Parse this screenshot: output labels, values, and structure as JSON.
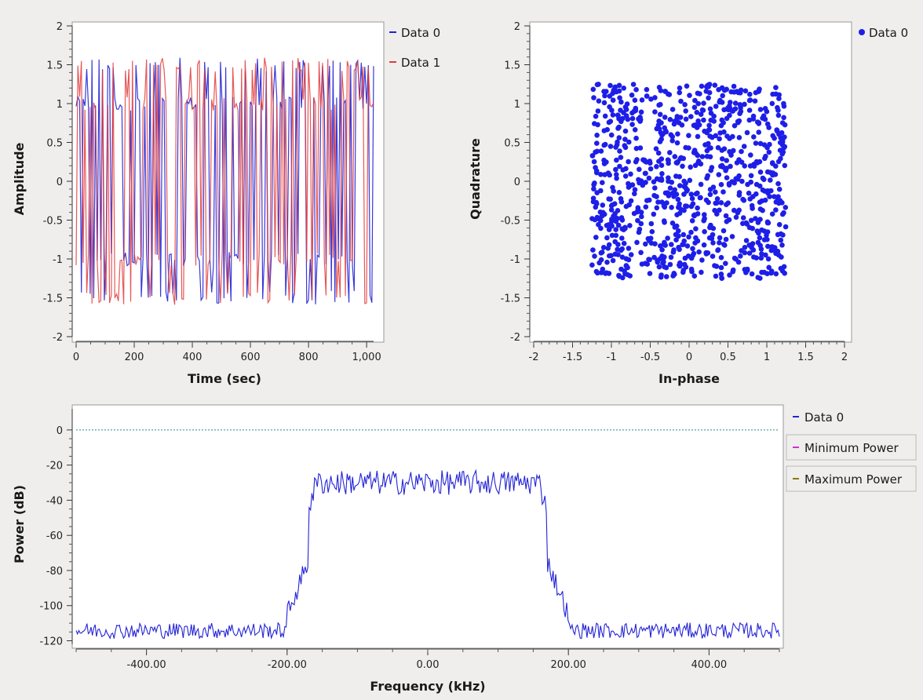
{
  "chart_data": [
    {
      "type": "line",
      "xlabel": "Time (sec)",
      "ylabel": "Amplitude",
      "xlim": [
        0,
        1024
      ],
      "ylim": [
        -2,
        2
      ],
      "xticks": [
        0,
        200,
        400,
        600,
        800,
        1000
      ],
      "xtick_labels": [
        "0",
        "200",
        "400",
        "600",
        "800",
        "1,000"
      ],
      "yticks": [
        -2,
        -1.5,
        -1,
        -0.5,
        0,
        0.5,
        1,
        1.5,
        2
      ],
      "ytick_labels": [
        "-2",
        "-1.5",
        "-1",
        "-0.5",
        "0",
        "0.5",
        "1",
        "1.5",
        "2"
      ],
      "grid": false,
      "legend_position": "right",
      "series": [
        {
          "name": "Data 0",
          "color": "#2323d6",
          "levels": [
            -1.5,
            -1.0,
            1.0,
            1.5
          ],
          "clip_min": 0.5
        },
        {
          "name": "Data 1",
          "color": "#e23a3a",
          "levels": [
            -1.5,
            -1.0,
            1.0,
            1.5
          ],
          "clip_min": 0.5
        }
      ]
    },
    {
      "type": "scatter",
      "xlabel": "In-phase",
      "ylabel": "Quadrature",
      "xlim": [
        -2,
        2
      ],
      "ylim": [
        -2,
        2
      ],
      "xticks": [
        -2,
        -1.5,
        -1,
        -0.5,
        0,
        0.5,
        1,
        1.5,
        2
      ],
      "xtick_labels": [
        "-2",
        "-1.5",
        "-1",
        "-0.5",
        "0",
        "0.5",
        "1",
        "1.5",
        "2"
      ],
      "yticks": [
        -2,
        -1.5,
        -1,
        -0.5,
        0,
        0.5,
        1,
        1.5,
        2
      ],
      "ytick_labels": [
        "-2",
        "-1.5",
        "-1",
        "-0.5",
        "0",
        "0.5",
        "1",
        "1.5",
        "2"
      ],
      "grid": false,
      "legend_position": "right",
      "series": [
        {
          "name": "Data 0",
          "color": "#1e1ee8",
          "constellation": [
            -1.0,
            -0.5,
            0,
            0.5,
            1.0
          ],
          "spread": 0.5
        }
      ]
    },
    {
      "type": "line",
      "xlabel": "Frequency (kHz)",
      "ylabel": "Power (dB)",
      "xlim": [
        -500,
        500
      ],
      "ylim": [
        -122,
        12
      ],
      "xticks": [
        -400,
        -200,
        0,
        200,
        400
      ],
      "xtick_labels": [
        "-400.00",
        "-200.00",
        "0.00",
        "200.00",
        "400.00"
      ],
      "yticks": [
        -120,
        -100,
        -80,
        -60,
        -40,
        -20,
        0
      ],
      "ytick_labels": [
        "-120",
        "-100",
        "-80",
        "-60",
        "-40",
        "-20",
        "0"
      ],
      "grid": false,
      "legend_position": "right",
      "reference_line": {
        "y": 0,
        "color": "#2a8a8a"
      },
      "spectrum": {
        "passband": [
          -170,
          170
        ],
        "passband_level": -30,
        "noise_floor": -116
      },
      "series": [
        {
          "name": "Data 0",
          "color": "#2323d6"
        }
      ],
      "legend_buttons": [
        {
          "name": "Minimum Power",
          "color": "#d030d0"
        },
        {
          "name": "Maximum Power",
          "color": "#8a7a10"
        }
      ]
    }
  ]
}
